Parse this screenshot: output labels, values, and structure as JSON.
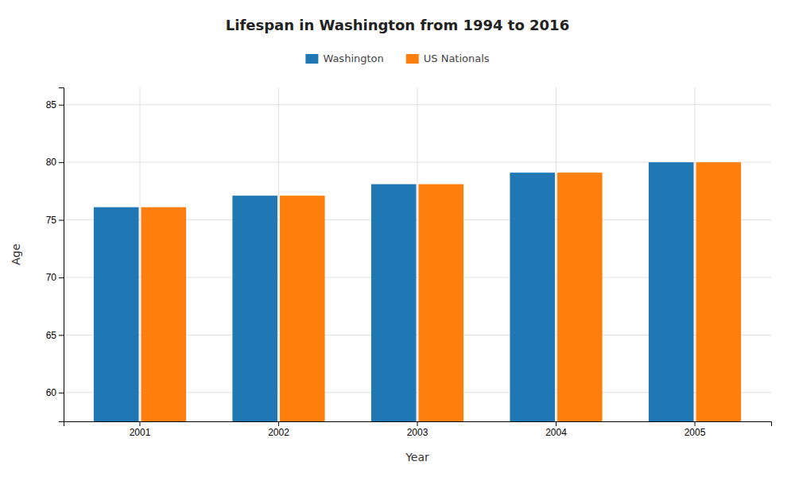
{
  "chart_data": {
    "type": "bar",
    "title": "Lifespan in Washington from 1994 to 2016",
    "xlabel": "Year",
    "ylabel": "Age",
    "categories": [
      "2001",
      "2002",
      "2003",
      "2004",
      "2005"
    ],
    "series": [
      {
        "name": "Washington",
        "values": [
          76.1,
          77.1,
          78.1,
          79.1,
          80.0
        ]
      },
      {
        "name": "US Nationals",
        "values": [
          76.1,
          77.1,
          78.1,
          79.1,
          80.0
        ]
      }
    ],
    "ylim": [
      57.5,
      86.5
    ],
    "yticks": [
      60,
      65,
      70,
      75,
      80,
      85
    ],
    "grid": true,
    "legend": "top"
  }
}
